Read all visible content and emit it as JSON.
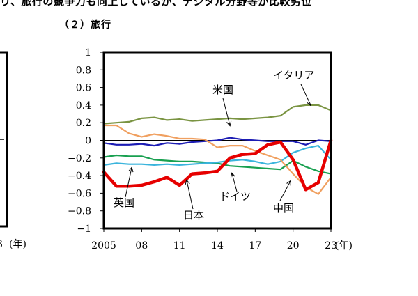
{
  "page": {
    "header_fragment": "り、旅行の競争力も向上しているが、デジタル分野等が比較劣位",
    "panel_title": "（２）旅行"
  },
  "left_panel": {
    "tick_fragment": "3",
    "year_unit": "(年)"
  },
  "chart_data": {
    "type": "line",
    "x": [
      2005,
      2006,
      2007,
      2008,
      2009,
      2010,
      2011,
      2012,
      2013,
      2014,
      2015,
      2016,
      2017,
      2018,
      2019,
      2020,
      2021,
      2022,
      2023
    ],
    "xticks": [
      {
        "value": 2005,
        "label": "2005"
      },
      {
        "value": 2008,
        "label": "08"
      },
      {
        "value": 2011,
        "label": "11"
      },
      {
        "value": 2014,
        "label": "14"
      },
      {
        "value": 2017,
        "label": "17"
      },
      {
        "value": 2020,
        "label": "20"
      },
      {
        "value": 2023,
        "label": "23"
      }
    ],
    "xunit": "(年)",
    "xlim": [
      2005,
      2023
    ],
    "ylim": [
      -1,
      1
    ],
    "yticks": [
      {
        "value": 1,
        "label": "1"
      },
      {
        "value": 0.8,
        "label": "0.8"
      },
      {
        "value": 0.6,
        "label": "0.6"
      },
      {
        "value": 0.4,
        "label": "0.4"
      },
      {
        "value": 0.2,
        "label": "0.2"
      },
      {
        "value": 0,
        "label": "0"
      },
      {
        "value": -0.2,
        "label": "−0.2"
      },
      {
        "value": -0.4,
        "label": "−0.4"
      },
      {
        "value": -0.6,
        "label": "−0.6"
      },
      {
        "value": -0.8,
        "label": "−0.8"
      },
      {
        "value": -1,
        "label": "−1"
      }
    ],
    "series": [
      {
        "name": "イタリア",
        "color": "#7a9442",
        "values": [
          0.19,
          0.2,
          0.21,
          0.25,
          0.26,
          0.23,
          0.24,
          0.22,
          0.23,
          0.24,
          0.25,
          0.24,
          0.25,
          0.26,
          0.28,
          0.38,
          0.4,
          0.4,
          0.34
        ]
      },
      {
        "name": "米国",
        "color": "#1c1cb4",
        "values": [
          -0.03,
          -0.05,
          -0.05,
          -0.04,
          -0.06,
          -0.03,
          -0.04,
          -0.02,
          -0.01,
          0.0,
          0.03,
          0.01,
          0.0,
          -0.01,
          -0.01,
          -0.01,
          -0.05,
          0.0,
          -0.01
        ]
      },
      {
        "name": "ドイツ",
        "color": "#18a050",
        "values": [
          -0.19,
          -0.17,
          -0.18,
          -0.18,
          -0.22,
          -0.23,
          -0.24,
          -0.24,
          -0.25,
          -0.26,
          -0.29,
          -0.3,
          -0.31,
          -0.32,
          -0.33,
          -0.23,
          -0.3,
          -0.35,
          -0.38
        ]
      },
      {
        "name": "英国",
        "color": "#3ab4dc",
        "values": [
          -0.28,
          -0.26,
          -0.27,
          -0.27,
          -0.28,
          -0.27,
          -0.28,
          -0.27,
          -0.26,
          -0.25,
          -0.23,
          -0.22,
          -0.24,
          -0.27,
          -0.24,
          -0.14,
          -0.09,
          -0.06,
          -0.22
        ]
      },
      {
        "name": "日本",
        "color": "#f0a060",
        "values": [
          0.17,
          0.17,
          0.08,
          0.04,
          0.07,
          0.05,
          0.02,
          0.02,
          0.01,
          -0.08,
          -0.06,
          -0.06,
          -0.12,
          -0.17,
          -0.22,
          -0.38,
          -0.53,
          -0.61,
          -0.42
        ]
      },
      {
        "name": "中国",
        "color": "#e60000",
        "values": [
          -0.36,
          -0.52,
          -0.52,
          -0.51,
          -0.47,
          -0.42,
          -0.51,
          -0.38,
          -0.37,
          -0.35,
          -0.2,
          -0.16,
          -0.15,
          -0.05,
          -0.02,
          -0.22,
          -0.56,
          -0.48,
          0.0
        ]
      }
    ],
    "annotations": [
      {
        "text": "イタリア"
      },
      {
        "text": "米国"
      },
      {
        "text": "ドイツ"
      },
      {
        "text": "英国"
      },
      {
        "text": "日本"
      },
      {
        "text": "中国"
      }
    ]
  }
}
